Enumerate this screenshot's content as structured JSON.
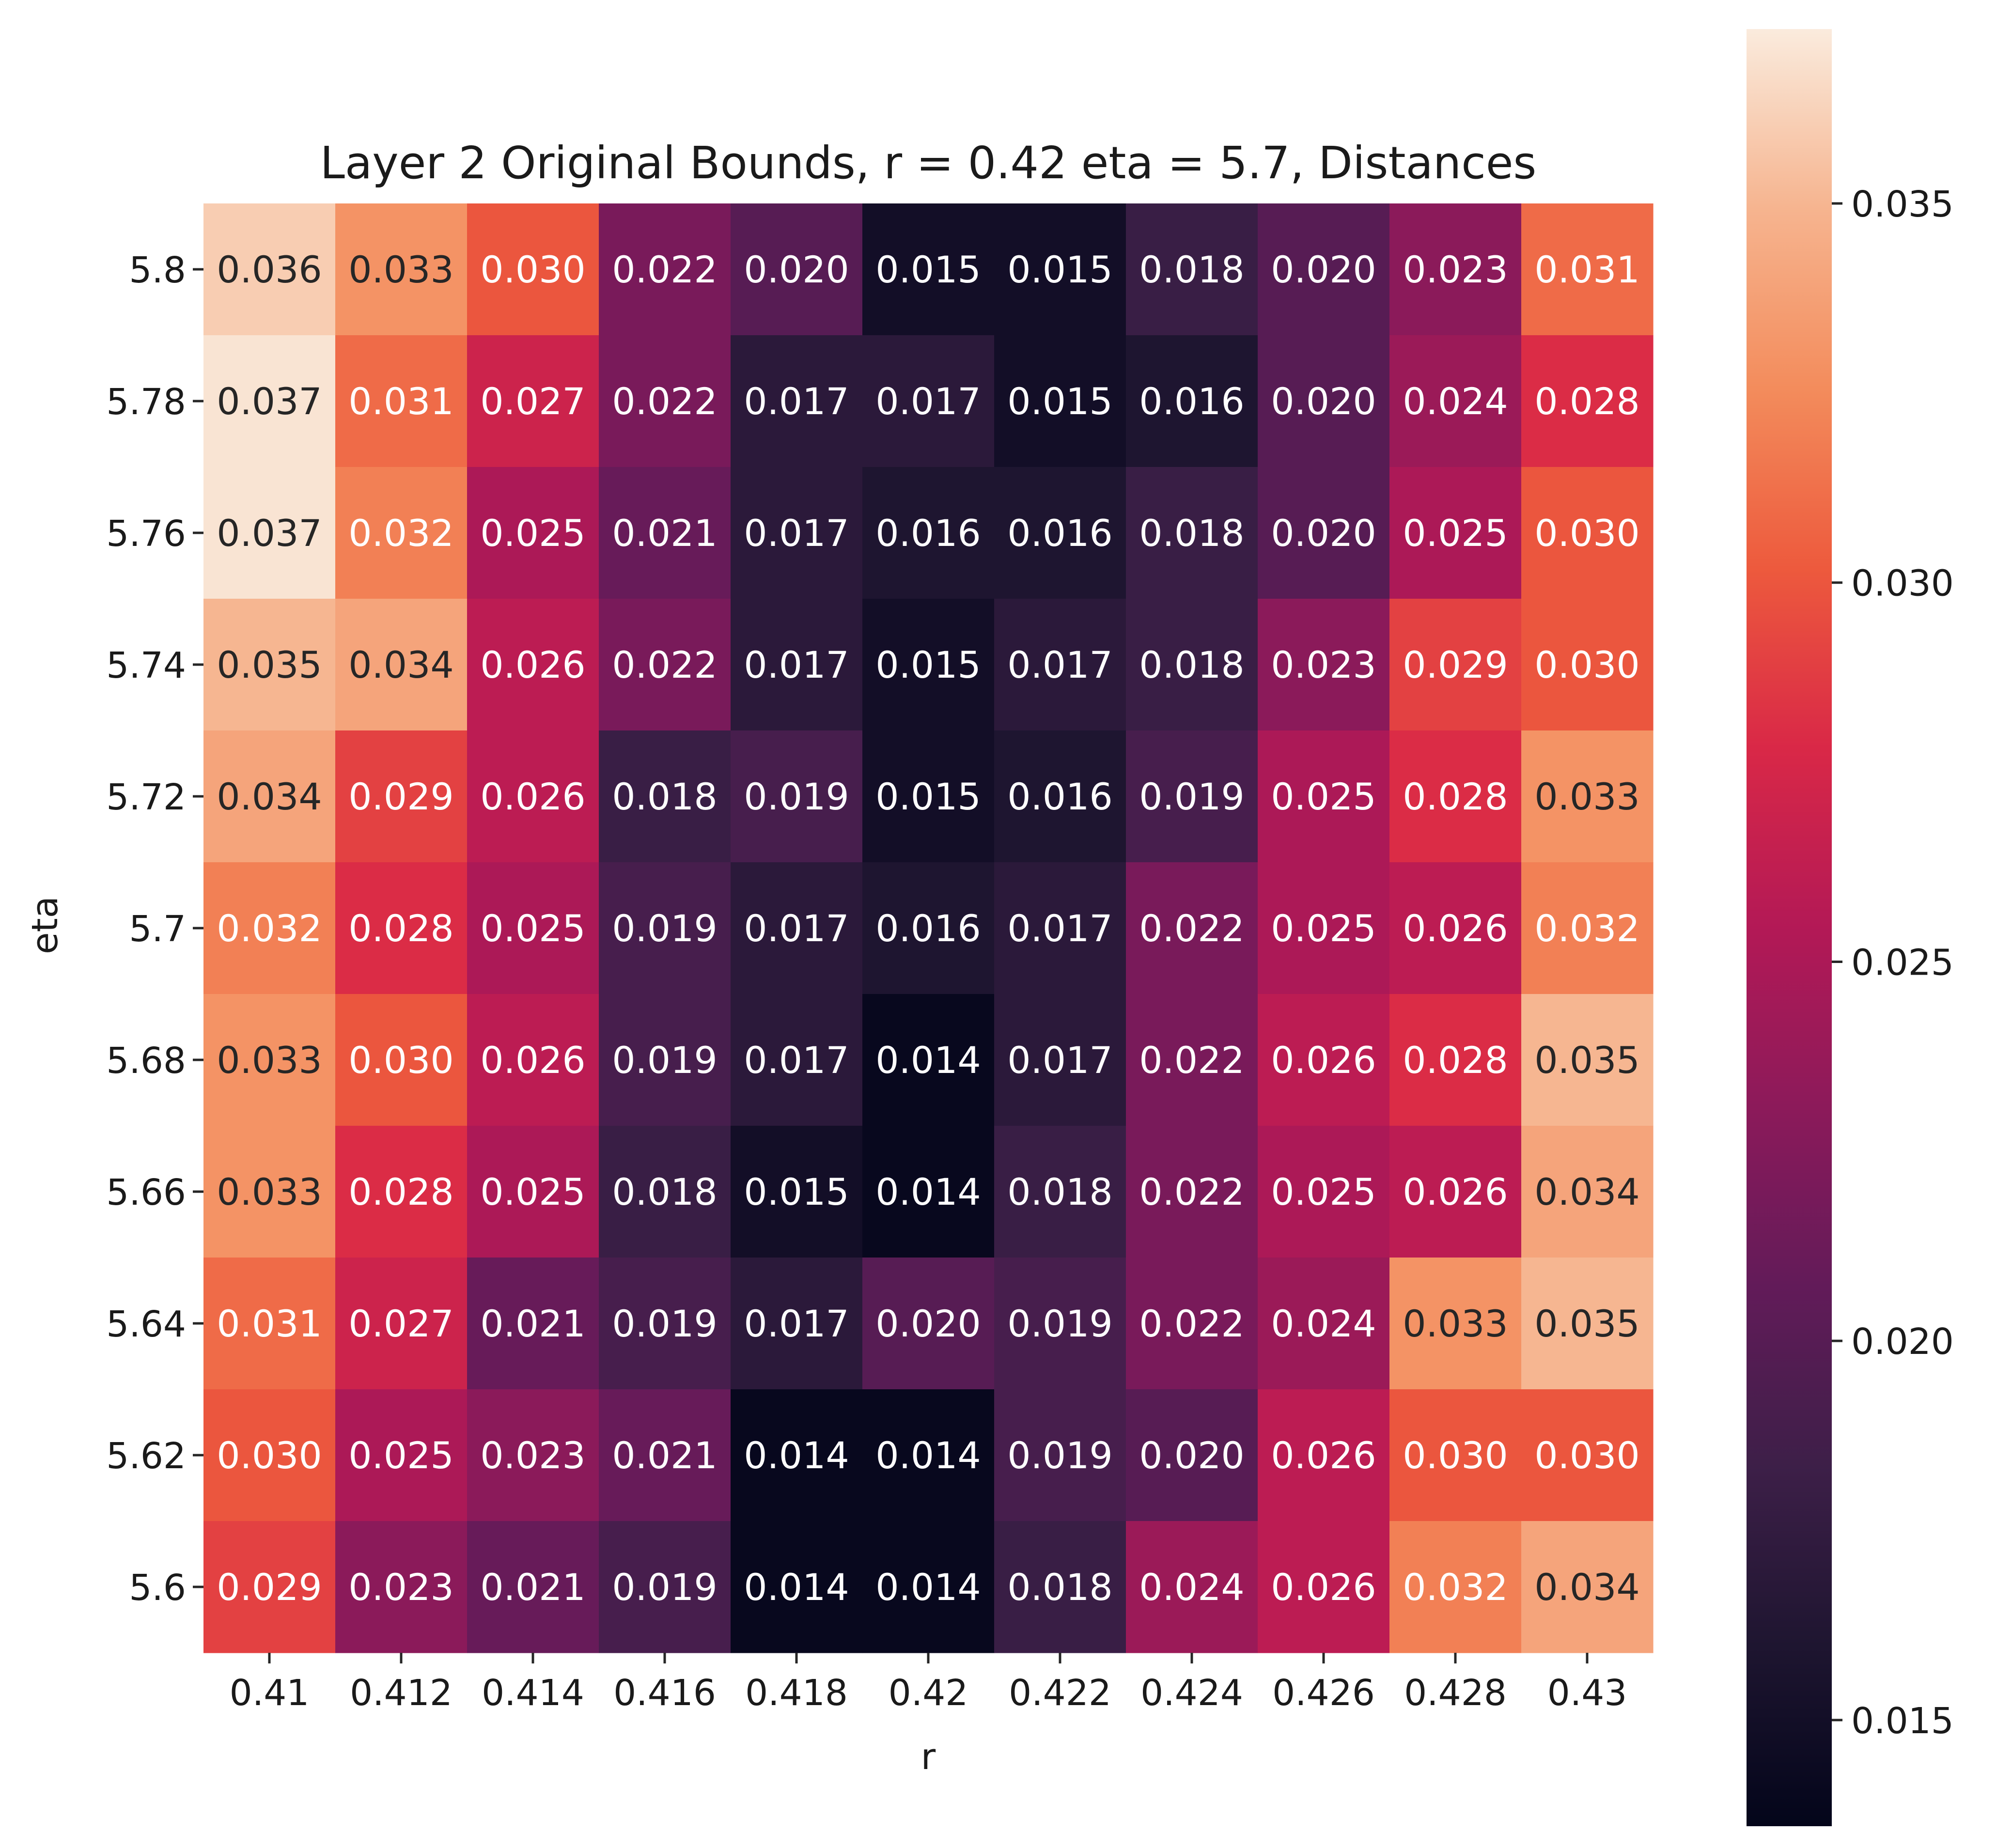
{
  "chart_data": {
    "type": "heatmap",
    "title": "Layer 2 Original Bounds, r = 0.42 eta = 5.7, Distances",
    "xlabel": "r",
    "ylabel": "eta",
    "x_tick_labels": [
      "0.41",
      "0.412",
      "0.414",
      "0.416",
      "0.418",
      "0.42",
      "0.422",
      "0.424",
      "0.426",
      "0.428",
      "0.43"
    ],
    "y_tick_labels": [
      "5.8",
      "5.78",
      "5.76",
      "5.74",
      "5.72",
      "5.7",
      "5.68",
      "5.66",
      "5.64",
      "5.62",
      "5.6"
    ],
    "values": [
      [
        0.036,
        0.033,
        0.03,
        0.022,
        0.02,
        0.015,
        0.015,
        0.018,
        0.02,
        0.023,
        0.031
      ],
      [
        0.037,
        0.031,
        0.027,
        0.022,
        0.017,
        0.017,
        0.015,
        0.016,
        0.02,
        0.024,
        0.028
      ],
      [
        0.037,
        0.032,
        0.025,
        0.021,
        0.017,
        0.016,
        0.016,
        0.018,
        0.02,
        0.025,
        0.03
      ],
      [
        0.035,
        0.034,
        0.026,
        0.022,
        0.017,
        0.015,
        0.017,
        0.018,
        0.023,
        0.029,
        0.03
      ],
      [
        0.034,
        0.029,
        0.026,
        0.018,
        0.019,
        0.015,
        0.016,
        0.019,
        0.025,
        0.028,
        0.033
      ],
      [
        0.032,
        0.028,
        0.025,
        0.019,
        0.017,
        0.016,
        0.017,
        0.022,
        0.025,
        0.026,
        0.032
      ],
      [
        0.033,
        0.03,
        0.026,
        0.019,
        0.017,
        0.014,
        0.017,
        0.022,
        0.026,
        0.028,
        0.035
      ],
      [
        0.033,
        0.028,
        0.025,
        0.018,
        0.015,
        0.014,
        0.018,
        0.022,
        0.025,
        0.026,
        0.034
      ],
      [
        0.031,
        0.027,
        0.021,
        0.019,
        0.017,
        0.02,
        0.019,
        0.022,
        0.024,
        0.033,
        0.035
      ],
      [
        0.03,
        0.025,
        0.023,
        0.021,
        0.014,
        0.014,
        0.019,
        0.02,
        0.026,
        0.03,
        0.03
      ],
      [
        0.029,
        0.023,
        0.021,
        0.019,
        0.014,
        0.014,
        0.018,
        0.024,
        0.026,
        0.032,
        0.034
      ]
    ],
    "colorbar": {
      "colormap": "rocket",
      "vmin": 0.0136,
      "vmax": 0.0373,
      "ticks": [
        0.015,
        0.02,
        0.025,
        0.03,
        0.035
      ],
      "tick_labels": [
        "0.015",
        "0.020",
        "0.025",
        "0.030",
        "0.035"
      ]
    },
    "colormap_stops": [
      "#03051a",
      "#1e1530",
      "#3d1f48",
      "#621b59",
      "#8c1a5a",
      "#b31956",
      "#d92847",
      "#ed5a3d",
      "#f38c5c",
      "#f6b48f",
      "#faebdd"
    ],
    "grid": false
  }
}
